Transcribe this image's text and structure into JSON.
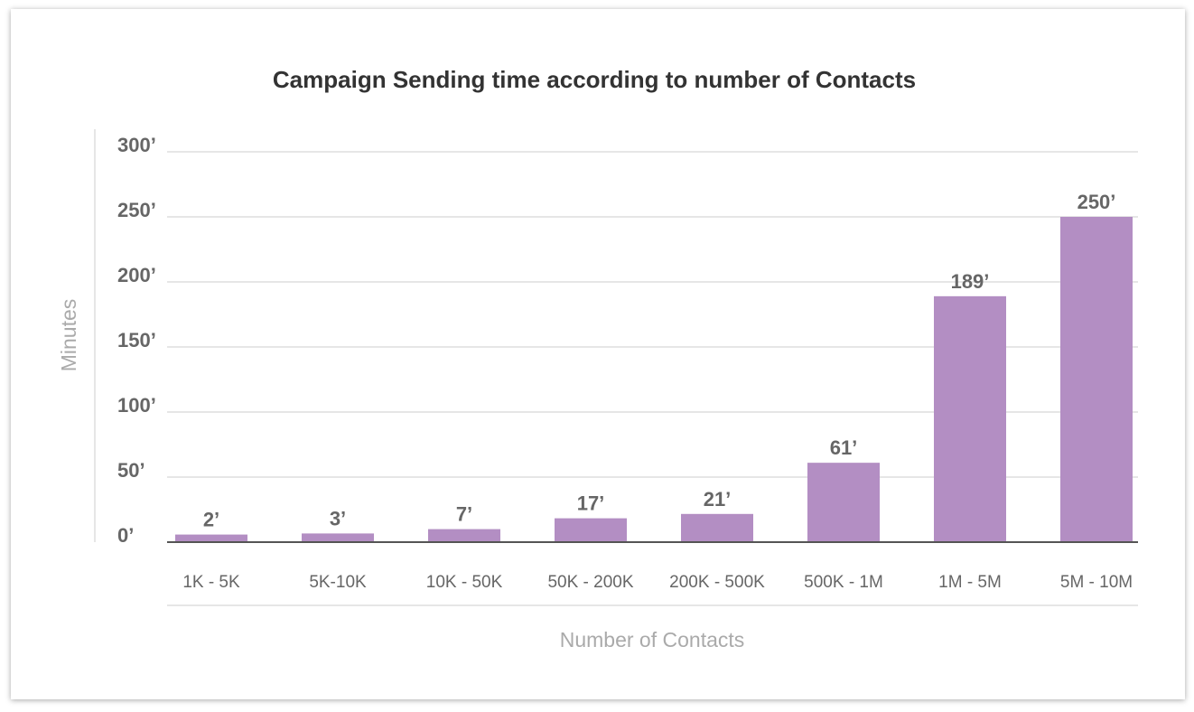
{
  "chart_data": {
    "type": "bar",
    "title": "Campaign Sending time according to number of Contacts",
    "xlabel": "Number of Contacts",
    "ylabel": "Minutes",
    "categories": [
      "1K - 5K",
      "5K-10K",
      "10K - 50K",
      "50K - 200K",
      "200K - 500K",
      "500K - 1M",
      "1M - 5M",
      "5M - 10M"
    ],
    "values": [
      2,
      3,
      7,
      17,
      21,
      61,
      189,
      250
    ],
    "data_labels": [
      "2’",
      "3’",
      "7’",
      "17’",
      "21’",
      "61’",
      "189’",
      "250’"
    ],
    "ylim": [
      0,
      300
    ],
    "yticks": [
      0,
      50,
      100,
      150,
      200,
      250,
      300
    ],
    "ytick_labels": [
      "0’",
      "50’",
      "100’",
      "150’",
      "200’",
      "250’",
      "300’"
    ],
    "grid": true,
    "bar_color": "#b38ec3"
  }
}
